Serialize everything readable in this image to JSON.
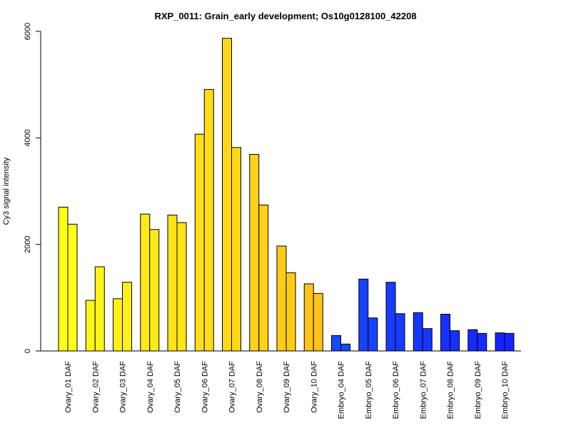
{
  "chart_data": {
    "type": "bar",
    "title": "RXP_0011: Grain_early development; Os10g0128100_42208",
    "xlabel": "",
    "ylabel": "Cy3 signal intensity",
    "ylim": [
      0,
      6000
    ],
    "yticks": [
      "0",
      "2000",
      "4000",
      "6000"
    ],
    "categories": [
      "Ovary_01 DAF",
      "Ovary_02 DAF",
      "Ovary_03 DAF",
      "Ovary_04 DAF",
      "Ovary_05 DAF",
      "Ovary_06 DAF",
      "Ovary_07 DAF",
      "Ovary_08 DAF",
      "Ovary_09 DAF",
      "Ovary_10 DAF",
      "Embryo_04 DAF",
      "Embryo_05 DAF",
      "Embryo_06 DAF",
      "Embryo_07 DAF",
      "Embryo_08 DAF",
      "Embryo_09 DAF",
      "Embryo_10 DAF"
    ],
    "series": [
      {
        "values": [
          2700,
          950,
          980,
          2570,
          2550,
          4070,
          5870,
          3690,
          1970,
          1260,
          290,
          1350,
          1290,
          720,
          690,
          400,
          340
        ]
      },
      {
        "values": [
          2380,
          1580,
          1290,
          2280,
          2410,
          4910,
          3820,
          2740,
          1470,
          1080,
          130,
          620,
          700,
          420,
          380,
          330,
          330
        ]
      }
    ],
    "colors": [
      "#FFFF17",
      "#FFF617",
      "#FFF017",
      "#FFEA17",
      "#FFE417",
      "#FFDE17",
      "#FFD717",
      "#FFD117",
      "#FFCB17",
      "#FFC417",
      "#1749FF",
      "#1743FF",
      "#173CFF",
      "#1736FF",
      "#1730FF",
      "#172AFF",
      "#1723FF"
    ],
    "grid": false,
    "legend": "none"
  }
}
